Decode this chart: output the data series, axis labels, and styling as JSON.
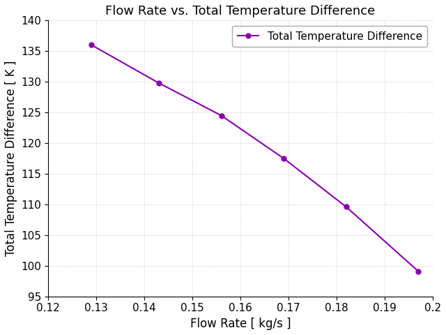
{
  "title": "Flow Rate vs. Total Temperature Difference",
  "xlabel": "Flow Rate [ kg/s ]",
  "ylabel": "Total Temperature Difference [ K ]",
  "legend_label": "Total Temperature Difference",
  "x_values": [
    0.129,
    0.143,
    0.156,
    0.169,
    0.182,
    0.197
  ],
  "y_values": [
    136.0,
    129.8,
    124.5,
    117.5,
    109.6,
    99.1
  ],
  "line_color": "#8800AA",
  "marker": "o",
  "marker_size": 5,
  "linewidth": 1.5,
  "xlim": [
    0.12,
    0.2
  ],
  "ylim": [
    95,
    140
  ],
  "xticks": [
    0.12,
    0.13,
    0.14,
    0.15,
    0.16,
    0.17,
    0.18,
    0.19,
    0.2
  ],
  "xtick_labels": [
    "0.12",
    "0.13",
    "0.14",
    "0.15",
    "0.16",
    "0.17",
    "0.18",
    "0.19",
    "0.2"
  ],
  "yticks": [
    95,
    100,
    105,
    110,
    115,
    120,
    125,
    130,
    135,
    140
  ],
  "grid_color": "#cccccc",
  "grid_linestyle": ":",
  "grid_linewidth": 0.8,
  "background_color": "#ffffff",
  "title_fontsize": 13,
  "label_fontsize": 12,
  "tick_fontsize": 11,
  "legend_fontsize": 11,
  "fig_width": 6.4,
  "fig_height": 4.8,
  "dpi": 100
}
